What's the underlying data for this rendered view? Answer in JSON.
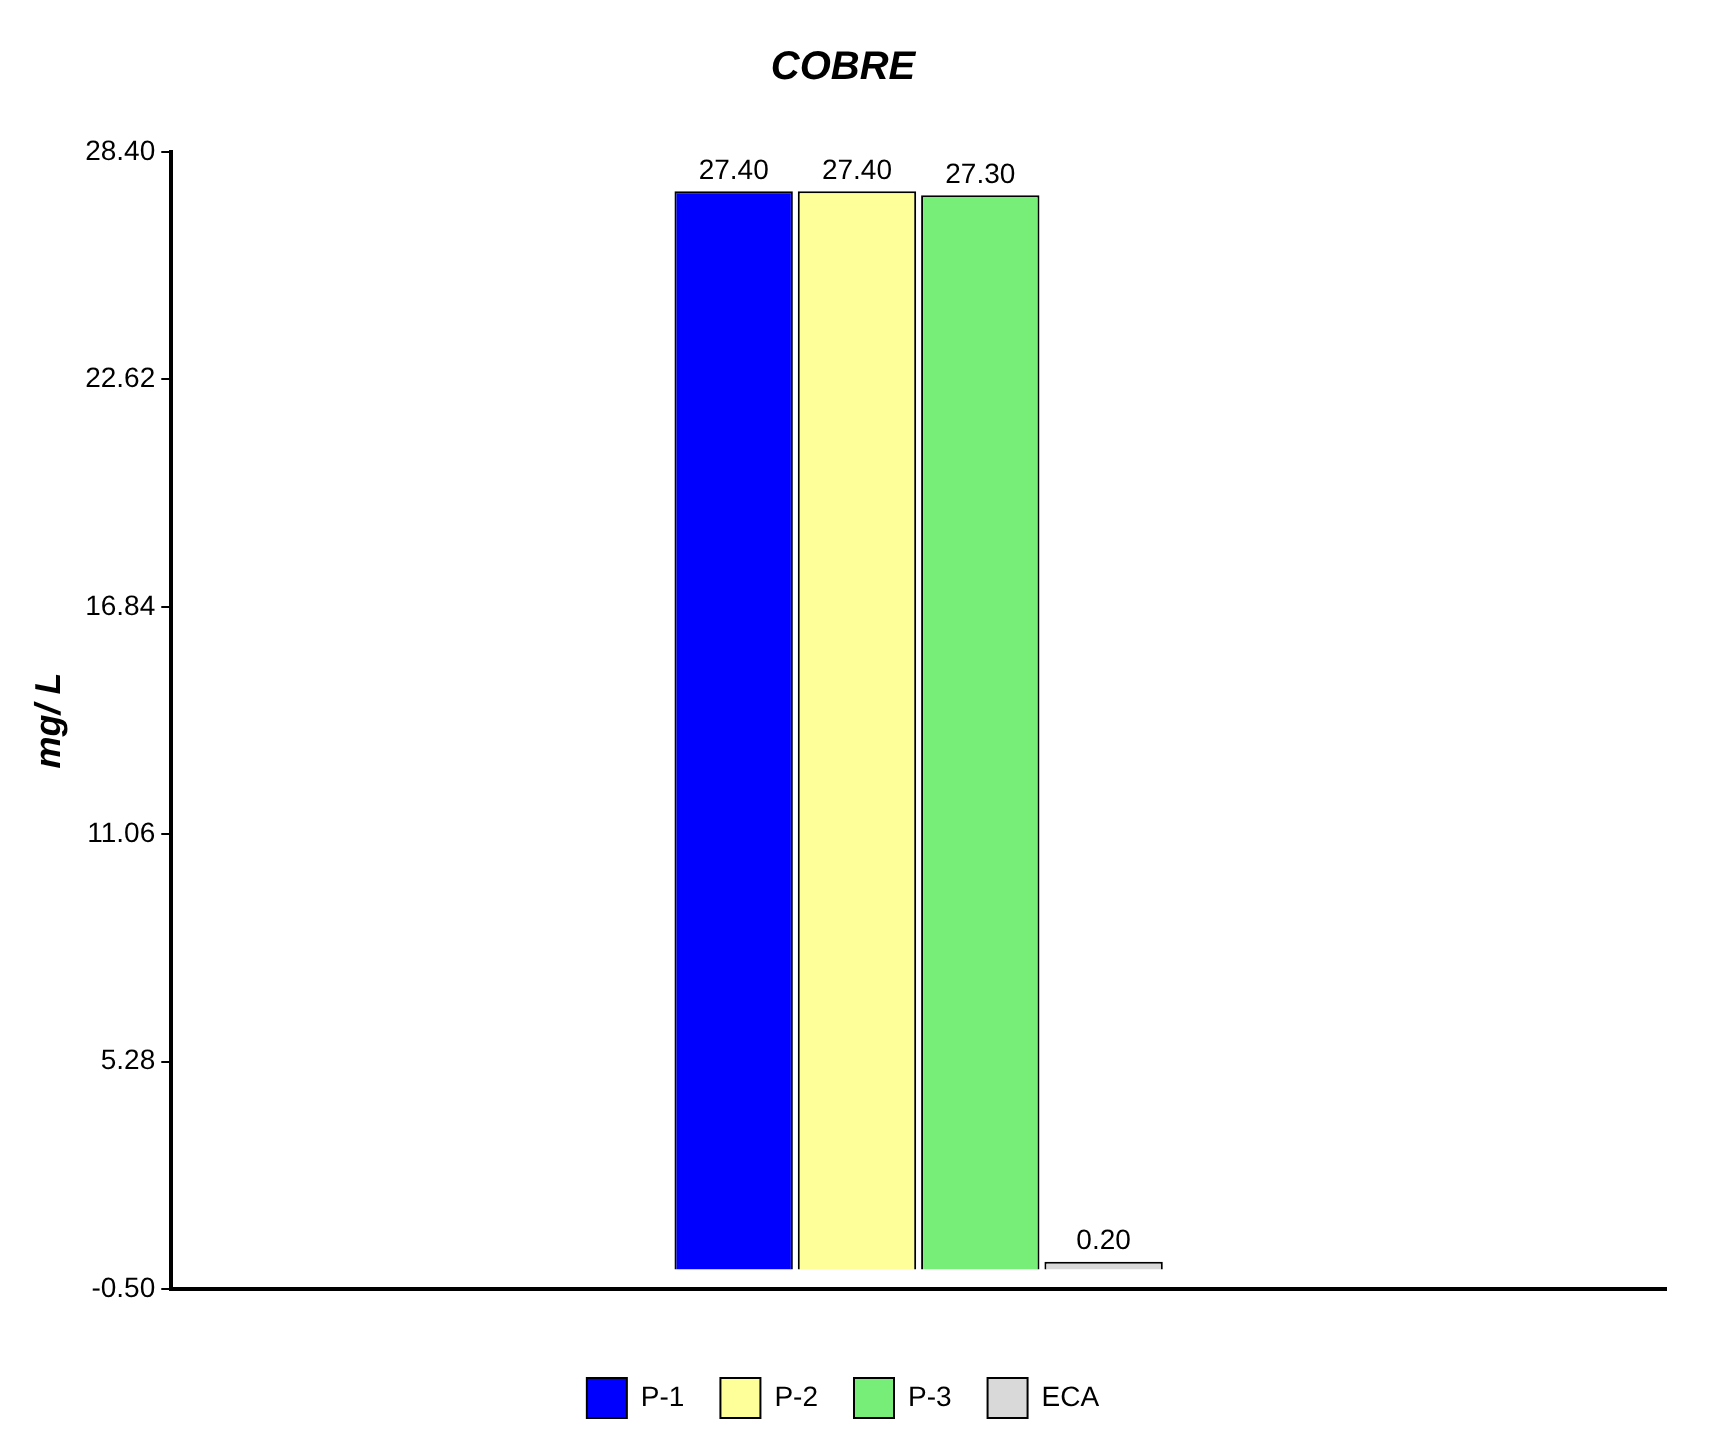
{
  "chart_data": {
    "type": "bar",
    "title": "COBRE",
    "ylabel": "mg/ L",
    "categories": [
      null
    ],
    "series": [
      {
        "name": "P-1",
        "color": "#0000ff",
        "values": [
          27.4
        ],
        "value_labels": [
          "27.40"
        ]
      },
      {
        "name": "P-2",
        "color": "#ffff99",
        "values": [
          27.4
        ],
        "value_labels": [
          "27.40"
        ]
      },
      {
        "name": "P-3",
        "color": "#77ee77",
        "values": [
          27.3
        ],
        "value_labels": [
          "27.30"
        ]
      },
      {
        "name": "ECA",
        "color": "#d9d9d9",
        "values": [
          0.2
        ],
        "value_labels": [
          "0.20"
        ]
      }
    ],
    "ylim": [
      -0.5,
      28.4
    ],
    "yticks": [
      {
        "value": -0.5,
        "label": "-0.50"
      },
      {
        "value": 5.28,
        "label": "5.28"
      },
      {
        "value": 11.06,
        "label": "11.06"
      },
      {
        "value": 16.84,
        "label": "16.84"
      },
      {
        "value": 22.62,
        "label": "22.62"
      },
      {
        "value": 28.4,
        "label": "28.40"
      }
    ],
    "grid": false,
    "legend": "bottom"
  }
}
